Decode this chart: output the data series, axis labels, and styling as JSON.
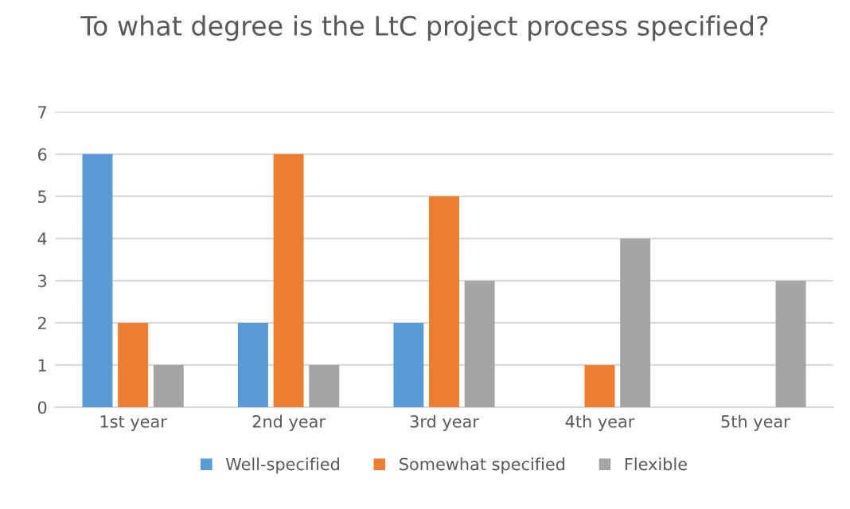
{
  "chart_data": {
    "type": "bar",
    "title": "To what degree is the LtC project process specified?",
    "categories": [
      "1st year",
      "2nd year",
      "3rd year",
      "4th year",
      "5th year"
    ],
    "series": [
      {
        "name": "Well-specified",
        "color": "#5b9bd5",
        "values": [
          6,
          2,
          2,
          0,
          0
        ]
      },
      {
        "name": "Somewhat specified",
        "color": "#ed7d31",
        "values": [
          2,
          6,
          5,
          1,
          0
        ]
      },
      {
        "name": "Flexible",
        "color": "#a5a5a5",
        "values": [
          1,
          1,
          3,
          4,
          3
        ]
      }
    ],
    "ylim": [
      0,
      7
    ],
    "yticks": [
      0,
      1,
      2,
      3,
      4,
      5,
      6,
      7
    ],
    "grid": "y",
    "legend": "bottom"
  }
}
